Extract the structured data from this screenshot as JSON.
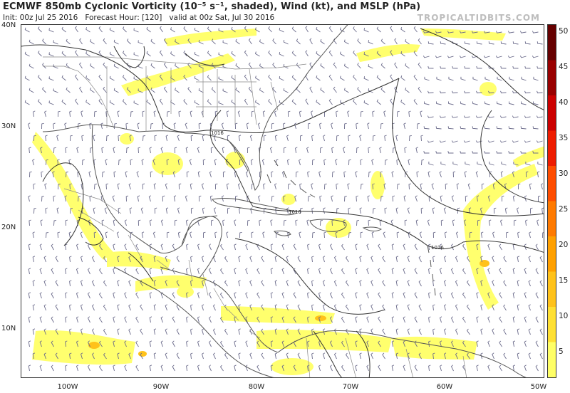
{
  "header": {
    "title": "ECMWF 850mb Cyclonic Vorticity (10⁻⁵ s⁻¹, shaded), Wind (kt), and MSLP (hPa)",
    "init": "Init: 00z Jul 25 2016",
    "forecast_hour": "Forecast Hour: [120]",
    "valid": "valid at 00z Sat, Jul 30 2016",
    "brand": "TROPICALTIDBITS.COM"
  },
  "lat_labels": [
    "40N",
    "30N",
    "20N",
    "10N"
  ],
  "lon_labels": [
    "100W",
    "90W",
    "80W",
    "70W",
    "60W",
    "50W"
  ],
  "colorbar": {
    "ticks": [
      "50",
      "45",
      "40",
      "35",
      "30",
      "25",
      "20",
      "15",
      "10",
      "5"
    ],
    "colors": [
      "#ffff66",
      "#ffe033",
      "#ffc21a",
      "#ffa000",
      "#ff7a00",
      "#ff4d00",
      "#ee1c00",
      "#cc0000",
      "#990000",
      "#660000"
    ]
  },
  "isobar_labels": [
    "1016",
    "1016",
    "1016"
  ],
  "colors": {
    "land_line": "#555555",
    "border_line": "#888888",
    "isobar": "#333333",
    "barb": "#6a6a8a",
    "vort_low": "#ffff66",
    "vort_high": "#ffc21a"
  }
}
